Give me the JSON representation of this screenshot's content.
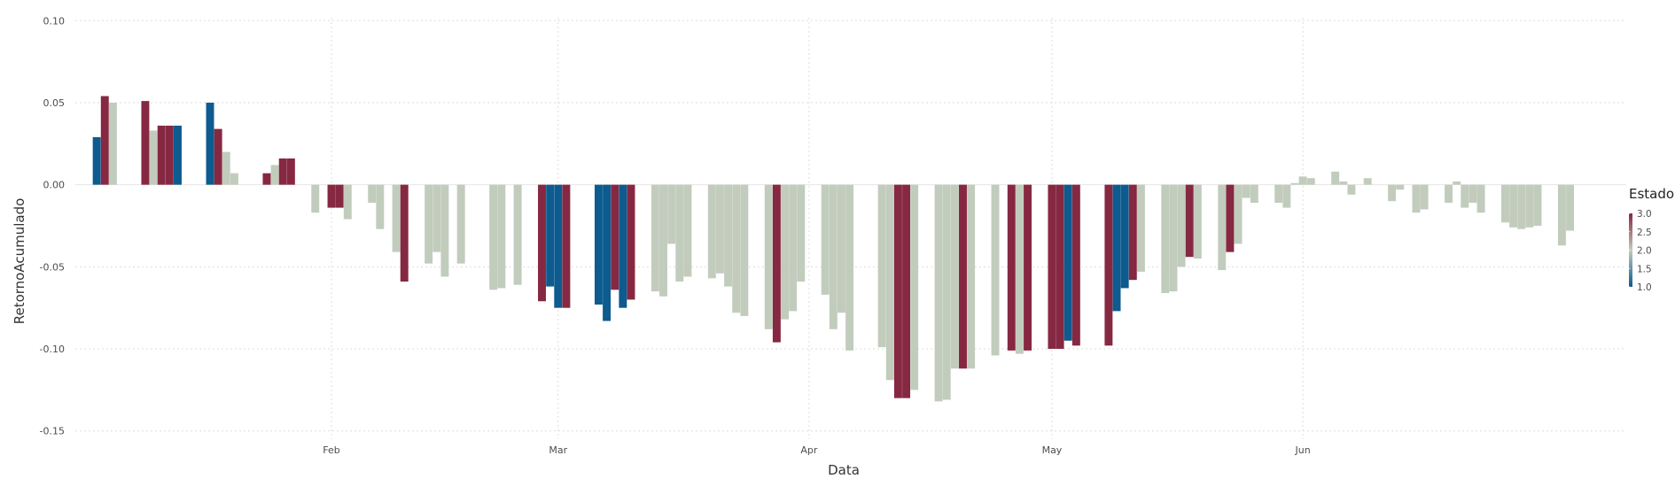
{
  "chart_data": {
    "type": "bar",
    "title": "",
    "xlabel": "Data",
    "ylabel": "RetornoAcumulado",
    "ylim": [
      -0.155,
      0.105
    ],
    "y_ticks": [
      {
        "value": 0.1,
        "label": "0.10"
      },
      {
        "value": 0.05,
        "label": "0.05"
      },
      {
        "value": 0.0,
        "label": "0.00"
      },
      {
        "value": -0.05,
        "label": "-0.05"
      },
      {
        "value": -0.1,
        "label": "-0.10"
      },
      {
        "value": -0.15,
        "label": "-0.15"
      }
    ],
    "x_domain": [
      "2023-01-02",
      "2023-06-30"
    ],
    "x_ticks": [
      {
        "date": "2023-02-01",
        "label": "Feb"
      },
      {
        "date": "2023-03-01",
        "label": "Mar"
      },
      {
        "date": "2023-04-01",
        "label": "Apr"
      },
      {
        "date": "2023-05-01",
        "label": "May"
      },
      {
        "date": "2023-06-01",
        "label": "Jun"
      }
    ],
    "grid": true,
    "legend": {
      "title": "Estado",
      "position": "right",
      "type": "colorbar",
      "range": [
        1.0,
        3.0
      ],
      "labels": [
        "3.0",
        "2.5",
        "2.0",
        "1.5",
        "1.0"
      ],
      "gradient_colors": [
        "#0d5b8f",
        "#c2ccbd",
        "#862842"
      ]
    },
    "state_colors": {
      "1": "#0d5b8f",
      "2": "#c2ccbd",
      "3": "#862842"
    },
    "points": [
      [
        "2023-01-03",
        0.029,
        1
      ],
      [
        "2023-01-04",
        0.054,
        3
      ],
      [
        "2023-01-05",
        0.05,
        2
      ],
      [
        "2023-01-09",
        0.051,
        3
      ],
      [
        "2023-01-10",
        0.033,
        2
      ],
      [
        "2023-01-11",
        0.036,
        3
      ],
      [
        "2023-01-12",
        0.036,
        3
      ],
      [
        "2023-01-13",
        0.036,
        1
      ],
      [
        "2023-01-17",
        0.05,
        1
      ],
      [
        "2023-01-18",
        0.034,
        3
      ],
      [
        "2023-01-19",
        0.02,
        2
      ],
      [
        "2023-01-20",
        0.007,
        2
      ],
      [
        "2023-01-24",
        0.007,
        3
      ],
      [
        "2023-01-25",
        0.012,
        2
      ],
      [
        "2023-01-26",
        0.016,
        3
      ],
      [
        "2023-01-27",
        0.016,
        3
      ],
      [
        "2023-01-30",
        -0.017,
        2
      ],
      [
        "2023-02-01",
        -0.014,
        3
      ],
      [
        "2023-02-02",
        -0.014,
        3
      ],
      [
        "2023-02-03",
        -0.021,
        2
      ],
      [
        "2023-02-06",
        -0.011,
        2
      ],
      [
        "2023-02-07",
        -0.027,
        2
      ],
      [
        "2023-02-09",
        -0.041,
        2
      ],
      [
        "2023-02-10",
        -0.059,
        3
      ],
      [
        "2023-02-13",
        -0.048,
        2
      ],
      [
        "2023-02-14",
        -0.041,
        2
      ],
      [
        "2023-02-15",
        -0.056,
        2
      ],
      [
        "2023-02-17",
        -0.048,
        2
      ],
      [
        "2023-02-21",
        -0.064,
        2
      ],
      [
        "2023-02-22",
        -0.063,
        2
      ],
      [
        "2023-02-24",
        -0.061,
        2
      ],
      [
        "2023-02-27",
        -0.071,
        3
      ],
      [
        "2023-02-28",
        -0.062,
        1
      ],
      [
        "2023-03-01",
        -0.075,
        1
      ],
      [
        "2023-03-02",
        -0.075,
        3
      ],
      [
        "2023-03-06",
        -0.073,
        1
      ],
      [
        "2023-03-07",
        -0.083,
        1
      ],
      [
        "2023-03-08",
        -0.064,
        3
      ],
      [
        "2023-03-09",
        -0.075,
        1
      ],
      [
        "2023-03-10",
        -0.07,
        3
      ],
      [
        "2023-03-13",
        -0.065,
        2
      ],
      [
        "2023-03-14",
        -0.068,
        2
      ],
      [
        "2023-03-15",
        -0.036,
        2
      ],
      [
        "2023-03-16",
        -0.059,
        2
      ],
      [
        "2023-03-17",
        -0.056,
        2
      ],
      [
        "2023-03-20",
        -0.057,
        2
      ],
      [
        "2023-03-21",
        -0.054,
        2
      ],
      [
        "2023-03-22",
        -0.062,
        2
      ],
      [
        "2023-03-23",
        -0.078,
        2
      ],
      [
        "2023-03-24",
        -0.08,
        2
      ],
      [
        "2023-03-27",
        -0.088,
        2
      ],
      [
        "2023-03-28",
        -0.096,
        3
      ],
      [
        "2023-03-29",
        -0.082,
        2
      ],
      [
        "2023-03-30",
        -0.077,
        2
      ],
      [
        "2023-03-31",
        -0.059,
        2
      ],
      [
        "2023-04-03",
        -0.067,
        2
      ],
      [
        "2023-04-04",
        -0.088,
        2
      ],
      [
        "2023-04-05",
        -0.078,
        2
      ],
      [
        "2023-04-06",
        -0.101,
        2
      ],
      [
        "2023-04-10",
        -0.099,
        2
      ],
      [
        "2023-04-11",
        -0.119,
        2
      ],
      [
        "2023-04-12",
        -0.13,
        3
      ],
      [
        "2023-04-13",
        -0.13,
        3
      ],
      [
        "2023-04-14",
        -0.125,
        2
      ],
      [
        "2023-04-17",
        -0.132,
        2
      ],
      [
        "2023-04-18",
        -0.131,
        2
      ],
      [
        "2023-04-19",
        -0.112,
        2
      ],
      [
        "2023-04-20",
        -0.112,
        3
      ],
      [
        "2023-04-21",
        -0.112,
        2
      ],
      [
        "2023-04-24",
        -0.104,
        2
      ],
      [
        "2023-04-26",
        -0.101,
        3
      ],
      [
        "2023-04-27",
        -0.103,
        2
      ],
      [
        "2023-04-28",
        -0.101,
        3
      ],
      [
        "2023-05-01",
        -0.1,
        3
      ],
      [
        "2023-05-02",
        -0.1,
        3
      ],
      [
        "2023-05-03",
        -0.095,
        1
      ],
      [
        "2023-05-04",
        -0.098,
        3
      ],
      [
        "2023-05-08",
        -0.098,
        3
      ],
      [
        "2023-05-09",
        -0.077,
        1
      ],
      [
        "2023-05-10",
        -0.063,
        1
      ],
      [
        "2023-05-11",
        -0.058,
        3
      ],
      [
        "2023-05-12",
        -0.053,
        2
      ],
      [
        "2023-05-15",
        -0.066,
        2
      ],
      [
        "2023-05-16",
        -0.065,
        2
      ],
      [
        "2023-05-17",
        -0.05,
        2
      ],
      [
        "2023-05-18",
        -0.044,
        3
      ],
      [
        "2023-05-19",
        -0.045,
        2
      ],
      [
        "2023-05-22",
        -0.052,
        2
      ],
      [
        "2023-05-23",
        -0.041,
        3
      ],
      [
        "2023-05-24",
        -0.036,
        2
      ],
      [
        "2023-05-25",
        -0.008,
        2
      ],
      [
        "2023-05-26",
        -0.011,
        2
      ],
      [
        "2023-05-29",
        -0.011,
        2
      ],
      [
        "2023-05-30",
        -0.014,
        2
      ],
      [
        "2023-05-31",
        0.001,
        2
      ],
      [
        "2023-06-01",
        0.005,
        2
      ],
      [
        "2023-06-02",
        0.004,
        2
      ],
      [
        "2023-06-05",
        0.008,
        2
      ],
      [
        "2023-06-06",
        0.002,
        2
      ],
      [
        "2023-06-07",
        -0.006,
        2
      ],
      [
        "2023-06-09",
        0.004,
        2
      ],
      [
        "2023-06-12",
        -0.01,
        2
      ],
      [
        "2023-06-13",
        -0.003,
        2
      ],
      [
        "2023-06-15",
        -0.017,
        2
      ],
      [
        "2023-06-16",
        -0.015,
        2
      ],
      [
        "2023-06-19",
        -0.011,
        2
      ],
      [
        "2023-06-20",
        0.002,
        2
      ],
      [
        "2023-06-21",
        -0.014,
        2
      ],
      [
        "2023-06-22",
        -0.011,
        2
      ],
      [
        "2023-06-23",
        -0.017,
        2
      ],
      [
        "2023-06-26",
        -0.023,
        2
      ],
      [
        "2023-06-27",
        -0.026,
        2
      ],
      [
        "2023-06-28",
        -0.027,
        2
      ],
      [
        "2023-06-29",
        -0.026,
        2
      ],
      [
        "2023-06-30",
        -0.025,
        2
      ],
      [
        "2023-07-03",
        -0.037,
        2
      ],
      [
        "2023-07-04",
        -0.028,
        2
      ]
    ]
  }
}
